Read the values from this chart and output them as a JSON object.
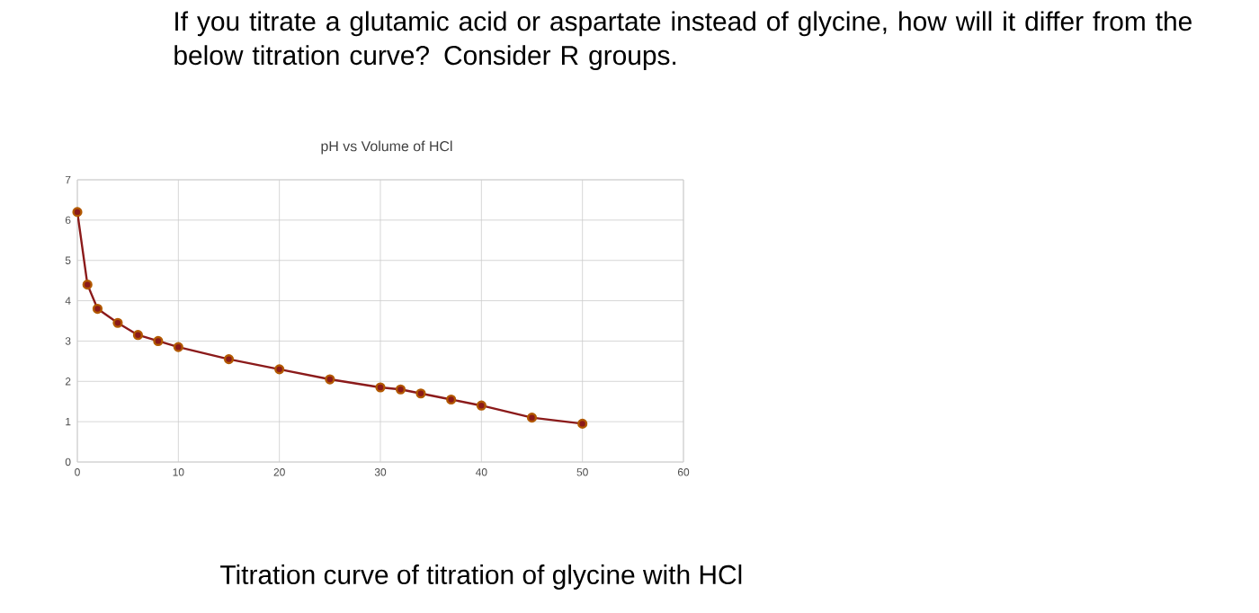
{
  "chart_data": {
    "type": "line",
    "title": "If you titrate a glutamic acid or aspartate instead of glycine, how will it differ from the below titration curve? Consider R groups.",
    "subtitle": "pH vs Volume of HCl",
    "annotations": [
      "Titration curve of titration of glycine with HCl"
    ],
    "x": [
      0,
      1,
      2,
      4,
      6,
      8,
      10,
      15,
      20,
      25,
      30,
      32,
      34,
      37,
      40,
      45,
      50
    ],
    "series": [
      {
        "color": "#8b1a1a",
        "values": [
          6.2,
          4.4,
          3.8,
          3.45,
          3.15,
          3.0,
          2.85,
          2.55,
          2.3,
          2.05,
          1.85,
          1.8,
          1.7,
          1.55,
          1.4,
          1.1,
          0.95
        ]
      }
    ],
    "xlim": [
      0,
      60
    ],
    "xticks": [
      0,
      10,
      20,
      30,
      40,
      50,
      60
    ],
    "ylim": [
      0,
      7
    ],
    "yticks": [
      0,
      1,
      2,
      3,
      4,
      5,
      6,
      7
    ],
    "grid": true,
    "marker": "circle",
    "line_style": "solid"
  }
}
